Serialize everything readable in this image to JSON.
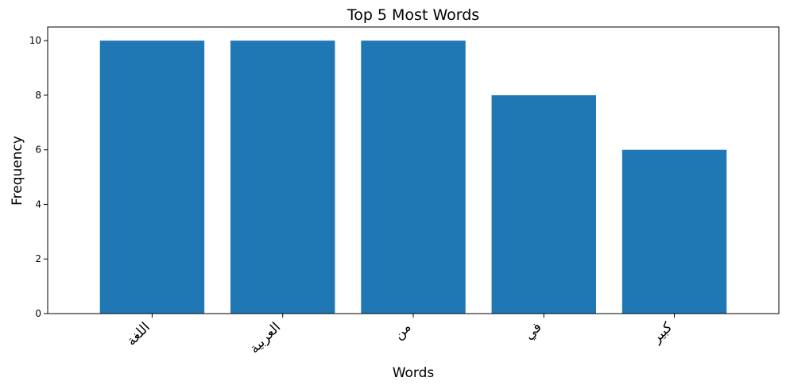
{
  "chart_data": {
    "type": "bar",
    "title": "Top 5 Most Words",
    "xlabel": "Words",
    "ylabel": "Frequency",
    "categories": [
      "اللغة",
      "العربية",
      "من",
      "في",
      "كبير"
    ],
    "values": [
      10,
      10,
      10,
      8,
      6
    ],
    "ylim": [
      0,
      10.5
    ],
    "yticks": [
      0,
      2,
      4,
      6,
      8,
      10
    ],
    "bar_color": "#1f77b4",
    "grid": false,
    "legend": "none"
  }
}
